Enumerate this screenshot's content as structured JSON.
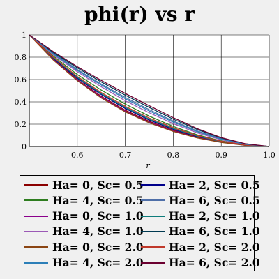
{
  "chart_data": {
    "type": "line",
    "title": "phi(r) vs r",
    "xlabel": "r",
    "ylabel": "",
    "xlim": [
      0.5,
      1.0
    ],
    "ylim": [
      0,
      1
    ],
    "xticks": [
      "0.6",
      "0.7",
      "0.8",
      "0.9",
      "1.0"
    ],
    "yticks": [
      "0",
      "0.2",
      "0.4",
      "0.6",
      "0.8",
      "1"
    ],
    "xtick_values": [
      0.6,
      0.7,
      0.8,
      0.9,
      1.0
    ],
    "ytick_values": [
      0,
      0.2,
      0.4,
      0.6,
      0.8,
      1
    ],
    "grid": true,
    "legend_position": "bottom",
    "x": [
      0.5,
      0.55,
      0.6,
      0.65,
      0.7,
      0.75,
      0.8,
      0.85,
      0.9,
      0.95,
      1.0
    ],
    "series": [
      {
        "name": "Ha= 0, Sc= 0.5",
        "color": "#8b0000",
        "values": [
          1.0,
          0.785,
          0.6,
          0.45,
          0.325,
          0.225,
          0.145,
          0.085,
          0.04,
          0.012,
          0.0
        ]
      },
      {
        "name": "Ha= 2, Sc= 0.5",
        "color": "#00008b",
        "values": [
          1.0,
          0.79,
          0.612,
          0.465,
          0.34,
          0.237,
          0.154,
          0.09,
          0.043,
          0.013,
          0.0
        ]
      },
      {
        "name": "Ha= 4, Sc= 0.5",
        "color": "#2e7d1f",
        "values": [
          1.0,
          0.81,
          0.645,
          0.505,
          0.38,
          0.272,
          0.18,
          0.105,
          0.05,
          0.015,
          0.0
        ]
      },
      {
        "name": "Ha= 6, Sc= 0.5",
        "color": "#4f6fa8",
        "values": [
          1.0,
          0.835,
          0.69,
          0.56,
          0.44,
          0.33,
          0.228,
          0.14,
          0.07,
          0.022,
          0.0
        ]
      },
      {
        "name": "Ha= 0, Sc= 1.0",
        "color": "#8b008b",
        "values": [
          1.0,
          0.78,
          0.595,
          0.443,
          0.317,
          0.218,
          0.14,
          0.08,
          0.038,
          0.011,
          0.0
        ]
      },
      {
        "name": "Ha= 2, Sc= 1.0",
        "color": "#0e7c7b",
        "values": [
          1.0,
          0.795,
          0.62,
          0.473,
          0.35,
          0.245,
          0.16,
          0.093,
          0.044,
          0.013,
          0.0
        ]
      },
      {
        "name": "Ha= 4, Sc= 1.0",
        "color": "#9b59b6",
        "values": [
          1.0,
          0.822,
          0.67,
          0.535,
          0.41,
          0.302,
          0.205,
          0.122,
          0.06,
          0.018,
          0.0
        ]
      },
      {
        "name": "Ha= 6, Sc= 1.0",
        "color": "#003a52",
        "values": [
          1.0,
          0.842,
          0.705,
          0.578,
          0.46,
          0.35,
          0.245,
          0.152,
          0.076,
          0.024,
          0.0
        ]
      },
      {
        "name": "Ha= 0, Sc= 2.0",
        "color": "#8b4513",
        "values": [
          1.0,
          0.775,
          0.59,
          0.435,
          0.31,
          0.212,
          0.135,
          0.077,
          0.036,
          0.01,
          0.0
        ]
      },
      {
        "name": "Ha= 2, Sc= 2.0",
        "color": "#c0392b",
        "values": [
          1.0,
          0.8,
          0.628,
          0.483,
          0.36,
          0.255,
          0.168,
          0.098,
          0.047,
          0.014,
          0.0
        ]
      },
      {
        "name": "Ha= 4, Sc= 2.0",
        "color": "#2c7fb8",
        "values": [
          1.0,
          0.83,
          0.682,
          0.55,
          0.428,
          0.318,
          0.218,
          0.132,
          0.066,
          0.02,
          0.0
        ]
      },
      {
        "name": "Ha= 6, Sc= 2.0",
        "color": "#6b0030",
        "values": [
          1.0,
          0.85,
          0.715,
          0.592,
          0.475,
          0.365,
          0.258,
          0.16,
          0.08,
          0.025,
          0.0
        ]
      }
    ]
  }
}
